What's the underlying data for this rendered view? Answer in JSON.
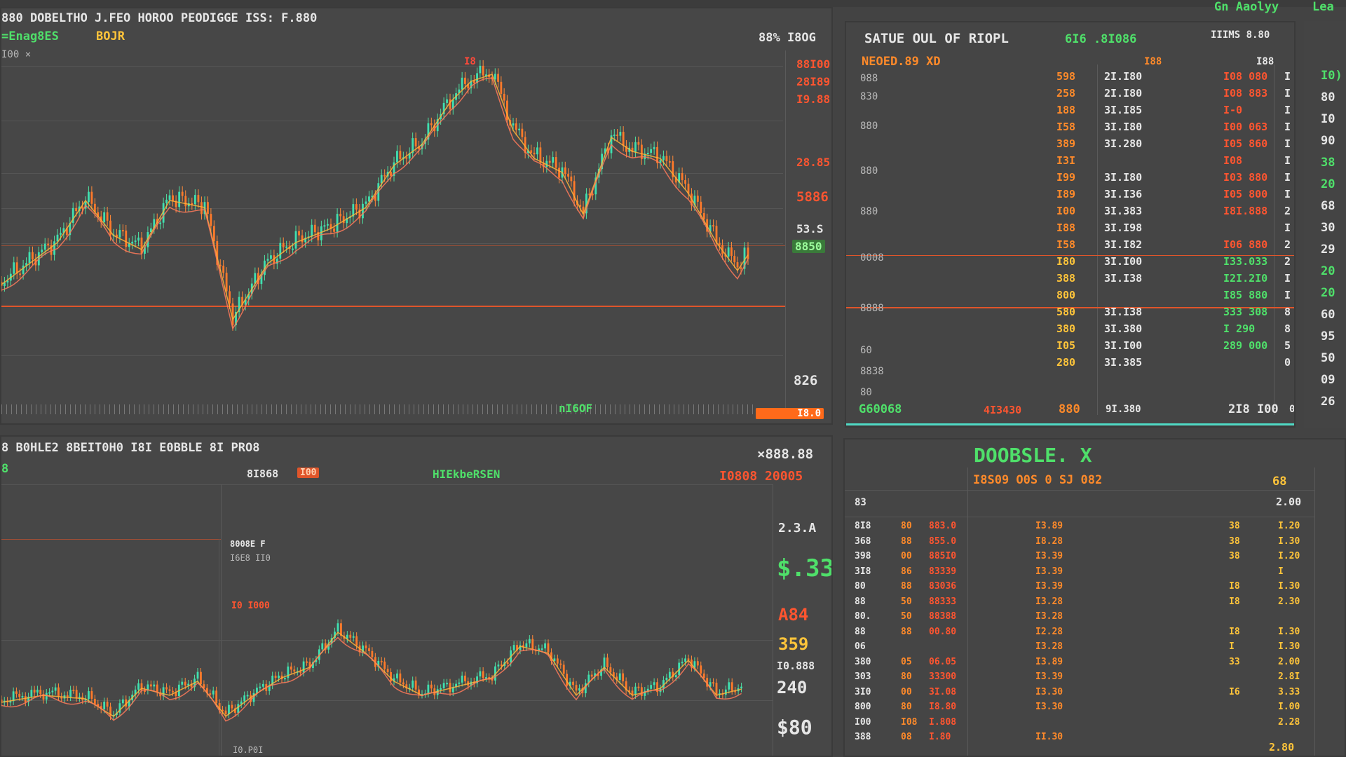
{
  "top_bar": {
    "links": [
      "Gn Aaolyy",
      "Lea"
    ]
  },
  "colors": {
    "up": "#4fe06a",
    "down": "#ff8a2a",
    "ref_line": "#e0552a",
    "bg": "#474747",
    "accent": "#4fd9c4"
  },
  "panel_tl": {
    "title": "880 DOBELTHO J.FEO  HOROO PEODIGGE  ISS: F.880",
    "subtitle": "=Enag8ES",
    "subtitle2": "BOJR",
    "corner": "88% I8OG",
    "small_label": "I00 ×",
    "marker": "I8",
    "axis_labels": [
      "88I00",
      "28I89",
      "I9.88",
      "28.85",
      "5886",
      "53.S",
      "8850",
      "826"
    ],
    "bottom_label": "nI6OF",
    "bottom_badge": "I8.0",
    "x_ticks": [
      "0",
      "4",
      "I",
      "4",
      "S",
      "8",
      "4",
      "4",
      "I",
      "1",
      "8",
      "8",
      "I",
      "B"
    ]
  },
  "panel_tr": {
    "title": "SATUE OUL OF RIOPL",
    "value": "6I6 .8I086",
    "header_right": "IIIMS 8.80",
    "sub_title": "NEOED.89 XD",
    "col_head_mid": "I88",
    "col_head_right": "I88",
    "left_labels": [
      "088",
      "830",
      "880",
      "880",
      "880",
      "0008",
      "8888",
      "60",
      "8838",
      "80"
    ],
    "rows": [
      {
        "c1": "598",
        "c2": "2I.I80",
        "c3": "I08 080",
        "c4": "I"
      },
      {
        "c1": "258",
        "c2": "2I.I80",
        "c3": "I08 883",
        "c4": "I"
      },
      {
        "c1": "188",
        "c2": "3I.I85",
        "c3": "I-0",
        "c4": "I"
      },
      {
        "c1": "I58",
        "c2": "3I.I80",
        "c3": "I00 063",
        "c4": "I"
      },
      {
        "c1": "389",
        "c2": "3I.280",
        "c3": "I05 860",
        "c4": "I"
      },
      {
        "c1": "I3I",
        "c2": "",
        "c3": "I08",
        "c4": "I"
      },
      {
        "c1": "I99",
        "c2": "3I.I80",
        "c3": "I03 880",
        "c4": "I"
      },
      {
        "c1": "I89",
        "c2": "3I.I36",
        "c3": "I05 800",
        "c4": "I"
      },
      {
        "c1": "I00",
        "c2": "3I.383",
        "c3": "I8I.888",
        "c4": "2"
      },
      {
        "c1": "I88",
        "c2": "3I.I98",
        "c3": "",
        "c4": "I"
      },
      {
        "c1": "I58",
        "c2": "3I.I82",
        "c3": "I06 880",
        "c4": "2"
      },
      {
        "c1": "I80",
        "c2": "3I.I00",
        "c3": "I33.033",
        "c4": "2"
      },
      {
        "c1": "388",
        "c2": "3I.I38",
        "c3": "I2I.2I0",
        "c4": "I"
      },
      {
        "c1": "800",
        "c2": "",
        "c3": "I85 880",
        "c4": "I"
      },
      {
        "c1": "580",
        "c2": "3I.I38",
        "c3": "333 308",
        "c4": "8"
      },
      {
        "c1": "380",
        "c2": "3I.380",
        "c3": "I 290",
        "c4": "8"
      },
      {
        "c1": "I05",
        "c2": "3I.I00",
        "c3": "289 000",
        "c4": "5"
      },
      {
        "c1": "280",
        "c2": "3I.385",
        "c3": "",
        "c4": "0"
      }
    ],
    "right_col": [
      "I0)",
      "80",
      "I0",
      "90",
      "38",
      "20",
      "68",
      "30",
      "29",
      "20",
      "20",
      "60",
      "95",
      "50",
      "09",
      "26"
    ],
    "footer": {
      "left": "G60068",
      "mid": "4I3430",
      "mid2": "880",
      "mid3": "9I.380",
      "right": "2I8 I00",
      "right2": "0"
    }
  },
  "panel_bl": {
    "title": "8 B0HLE2 8BEIT0H0 I8I E0BBLE 8I PRO8",
    "left_small": "8",
    "price_label": "8I868",
    "badge": "I00",
    "green_label": "HIEkbeRSEN",
    "right_top": "×888.88",
    "right_top2": "I0808 20005",
    "inner_label": "8008E F",
    "inner_label2": "I6E8 II0",
    "inner_badge": "I0 I000",
    "axis_labels": [
      "2.3.A",
      "$.33",
      "A84",
      "359",
      "I0.888",
      "240",
      "$80"
    ],
    "bottom_small": "I0.P0I"
  },
  "panel_br": {
    "title": "DOOBSLE. X",
    "subtitle": "I8S09 O0S 0 SJ 082",
    "top_right": "68",
    "top_right2": "2.00",
    "corner_left": "83",
    "rows": [
      {
        "a": "8I8",
        "b": "80",
        "c": "883.0",
        "d": "I3.89",
        "e": "38",
        "f": "I.20"
      },
      {
        "a": "368",
        "b": "88",
        "c": "855.0",
        "d": "I8.28",
        "e": "38",
        "f": "I.30"
      },
      {
        "a": "398",
        "b": "00",
        "c": "885I0",
        "d": "I3.39",
        "e": "38",
        "f": "I.20"
      },
      {
        "a": "3I8",
        "b": "86",
        "c": "83339",
        "d": "I3.39",
        "e": "",
        "f": "I"
      },
      {
        "a": "80",
        "b": "88",
        "c": "83036",
        "d": "I3.39",
        "e": "I8",
        "f": "I.30"
      },
      {
        "a": "88",
        "b": "50",
        "c": "88333",
        "d": "I3.28",
        "e": "I8",
        "f": "2.30"
      },
      {
        "a": "80.",
        "b": "50",
        "c": "88388",
        "d": "I3.28",
        "e": "",
        "f": ""
      },
      {
        "a": "88",
        "b": "88",
        "c": "00.80",
        "d": "I2.28",
        "e": "I8",
        "f": "I.30"
      },
      {
        "a": "06",
        "b": "",
        "c": "",
        "d": "I3.28",
        "e": "I",
        "f": "I.30"
      },
      {
        "a": "380",
        "b": "05",
        "c": "06.05",
        "d": "I3.89",
        "e": "33",
        "f": "2.00"
      },
      {
        "a": "303",
        "b": "80",
        "c": "33300",
        "d": "I3.39",
        "e": "",
        "f": "2.8I"
      },
      {
        "a": "3I0",
        "b": "00",
        "c": "3I.08",
        "d": "I3.30",
        "e": "I6",
        "f": "3.33"
      },
      {
        "a": "800",
        "b": "80",
        "c": "I8.80",
        "d": "I3.30",
        "e": "",
        "f": "I.00"
      },
      {
        "a": "I00",
        "b": "I08",
        "c": "I.808",
        "d": "",
        "e": "",
        "f": "2.28"
      },
      {
        "a": "388",
        "b": "08",
        "c": "I.80",
        "d": "II.30",
        "e": "",
        "f": ""
      }
    ],
    "bottom_right": "2.80"
  }
}
